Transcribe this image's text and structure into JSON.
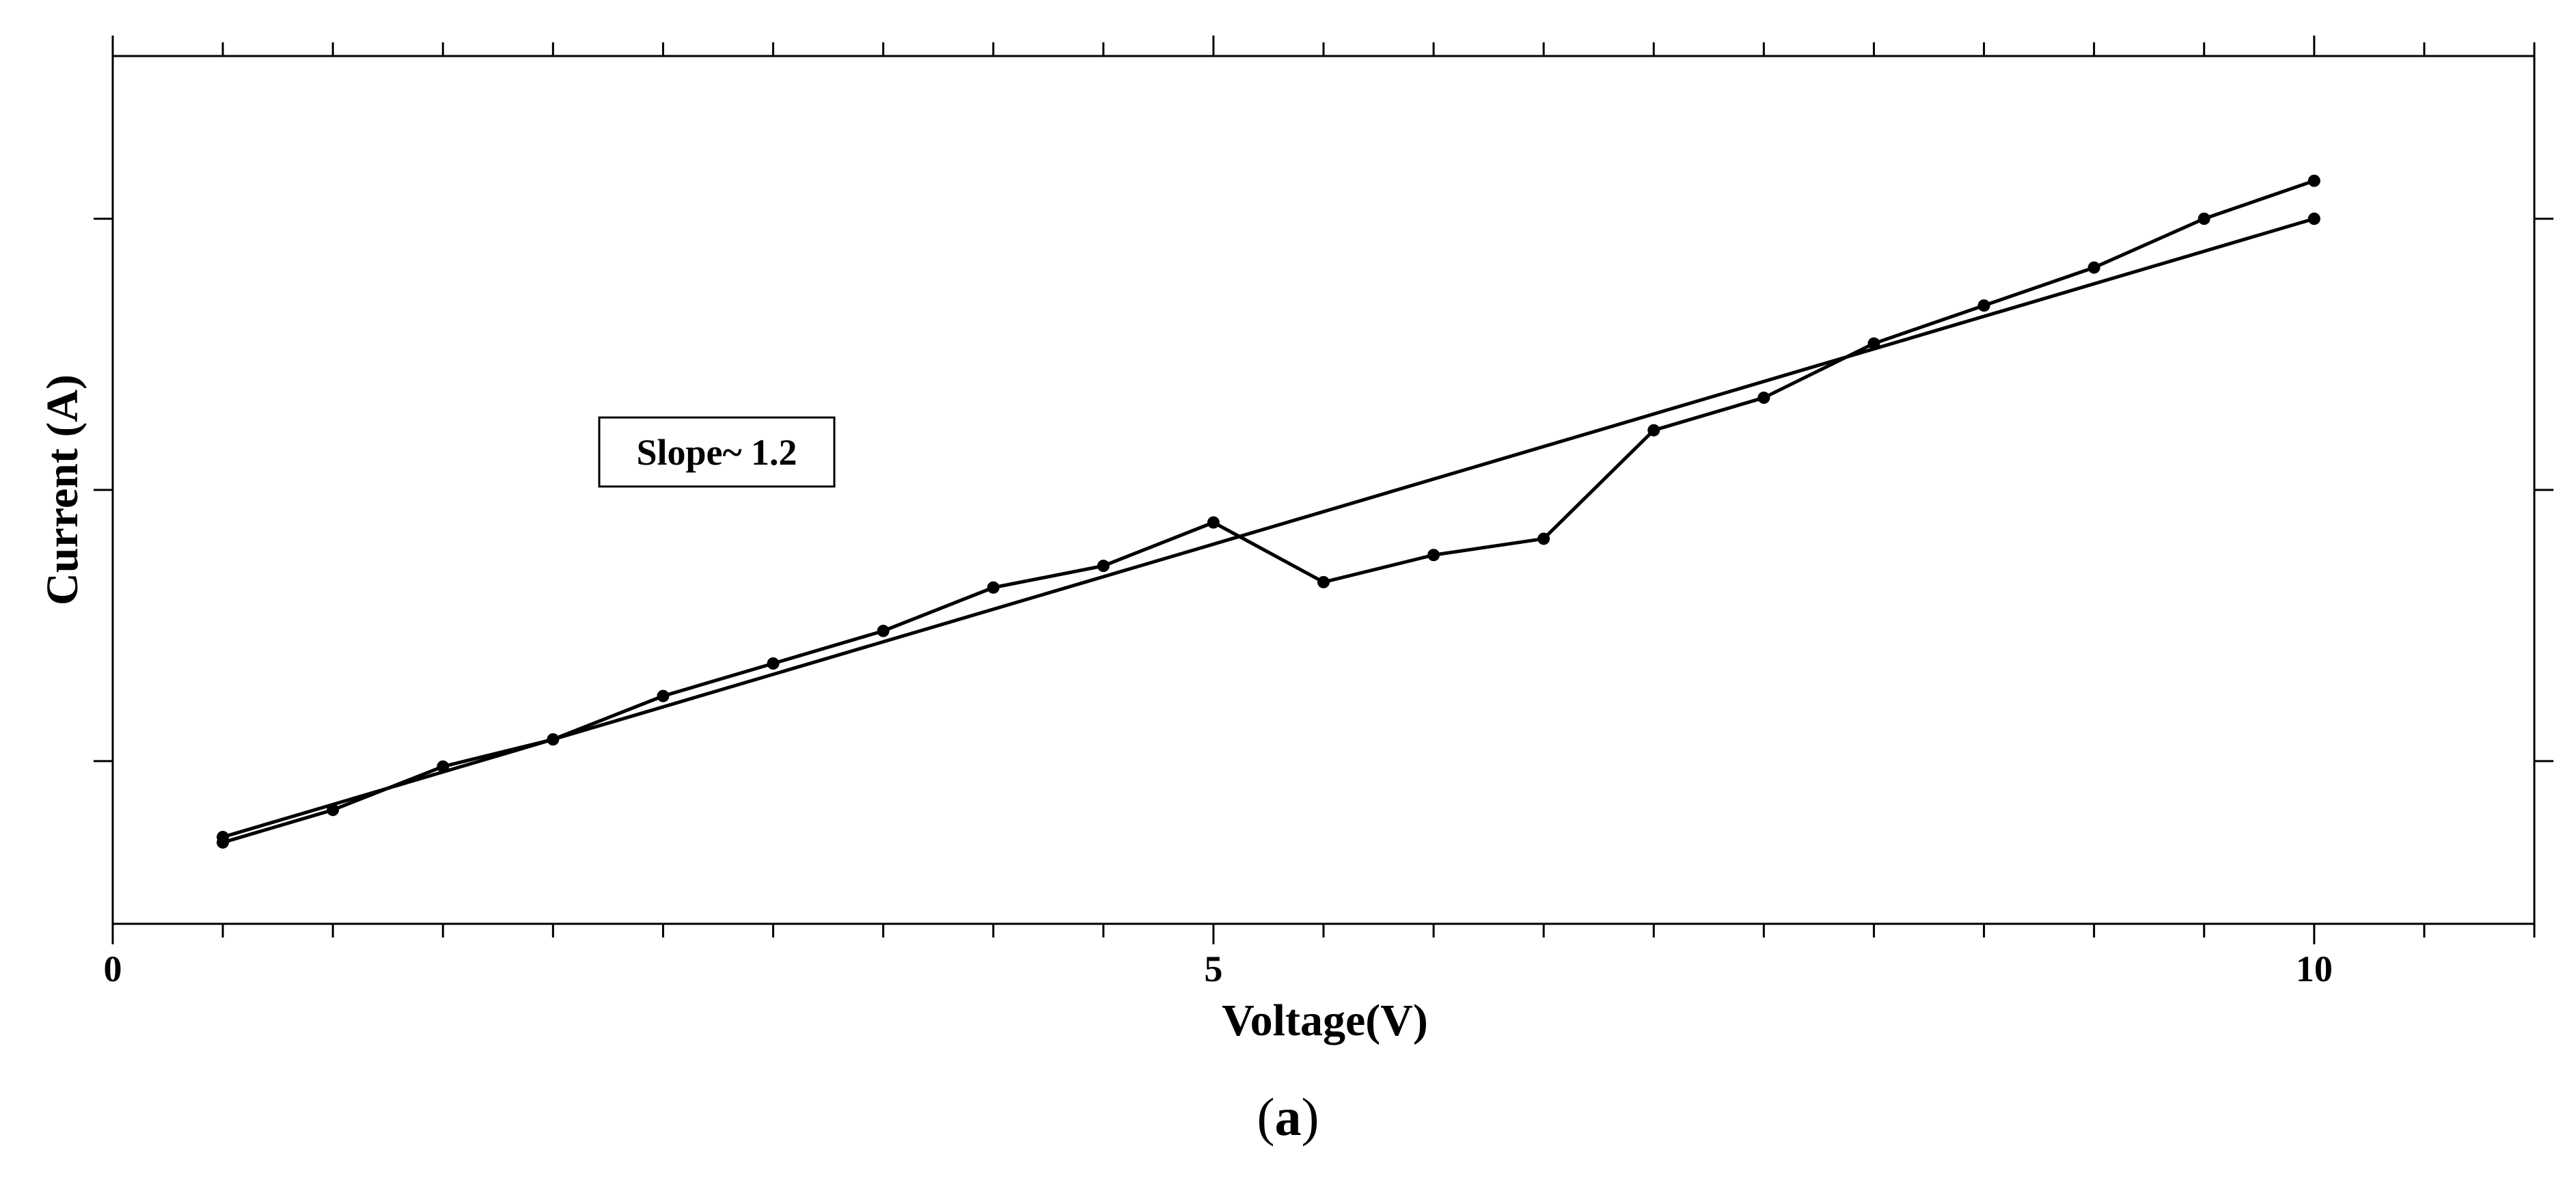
{
  "chart_data": {
    "type": "line",
    "xlabel": "Voltage(V)",
    "ylabel": "Current (A)",
    "xlim": [
      0,
      11
    ],
    "ylim": [
      0,
      1.6
    ],
    "x_ticks": [
      0,
      5,
      10
    ],
    "x_tick_labels": [
      "0",
      "5",
      "10"
    ],
    "x_minor_step": 0.5,
    "y_tick_values": [
      0.3,
      0.8,
      1.3
    ],
    "grid": false,
    "annotation": "Slope~ 1.2",
    "series": [
      {
        "values": [
          {
            "x": 0.5,
            "y": 0.15
          },
          {
            "x": 1.0,
            "y": 0.21
          },
          {
            "x": 1.5,
            "y": 0.29
          },
          {
            "x": 2.0,
            "y": 0.34
          },
          {
            "x": 2.5,
            "y": 0.42
          },
          {
            "x": 3.0,
            "y": 0.48
          },
          {
            "x": 3.5,
            "y": 0.54
          },
          {
            "x": 4.0,
            "y": 0.62
          },
          {
            "x": 4.5,
            "y": 0.66
          },
          {
            "x": 5.0,
            "y": 0.74
          },
          {
            "x": 5.5,
            "y": 0.63
          },
          {
            "x": 6.0,
            "y": 0.68
          },
          {
            "x": 6.5,
            "y": 0.71
          },
          {
            "x": 7.0,
            "y": 0.91
          },
          {
            "x": 7.5,
            "y": 0.97
          },
          {
            "x": 8.0,
            "y": 1.07
          },
          {
            "x": 8.5,
            "y": 1.14
          },
          {
            "x": 9.0,
            "y": 1.21
          },
          {
            "x": 9.5,
            "y": 1.3
          },
          {
            "x": 10.0,
            "y": 1.37
          }
        ]
      },
      {
        "values": [
          {
            "x": 0.5,
            "y": 0.16
          },
          {
            "x": 10.0,
            "y": 1.3
          }
        ]
      }
    ]
  },
  "caption": "a"
}
